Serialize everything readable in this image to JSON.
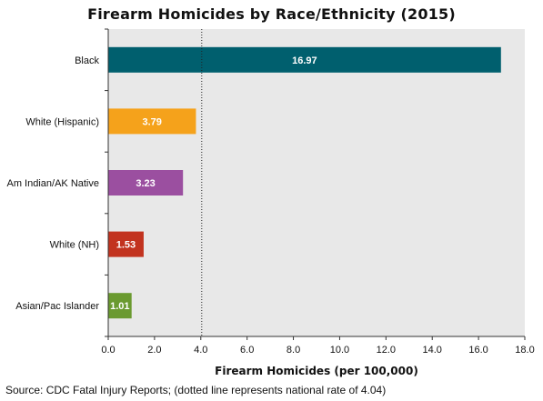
{
  "chart_data": {
    "type": "bar",
    "orientation": "horizontal",
    "title": "Firearm Homicides by Race/Ethnicity (2015)",
    "xlabel": "Firearm Homicides (per 100,000)",
    "ylabel": "",
    "categories": [
      "Black",
      "White (Hispanic)",
      "Am Indian/AK Native",
      "White (NH)",
      "Asian/Pac Islander"
    ],
    "values": [
      16.97,
      3.79,
      3.23,
      1.53,
      1.01
    ],
    "value_labels": [
      "16.97",
      "3.79",
      "3.23",
      "1.53",
      "1.01"
    ],
    "colors": [
      "#005f6e",
      "#f5a21b",
      "#9b4fa0",
      "#c2331f",
      "#6a9a2f"
    ],
    "xlim": [
      0,
      18
    ],
    "x_ticks": [
      "0.0",
      "2.0",
      "4.0",
      "6.0",
      "8.0",
      "10.0",
      "12.0",
      "14.0",
      "16.0",
      "18.0"
    ],
    "reference_line": {
      "value": 4.04,
      "style": "dotted"
    },
    "grid": false,
    "plot_background": "#e8e8e8",
    "legend": "none"
  },
  "footer": {
    "source": "Source: CDC Fatal Injury Reports; (dotted line represents national rate of 4.04)"
  }
}
